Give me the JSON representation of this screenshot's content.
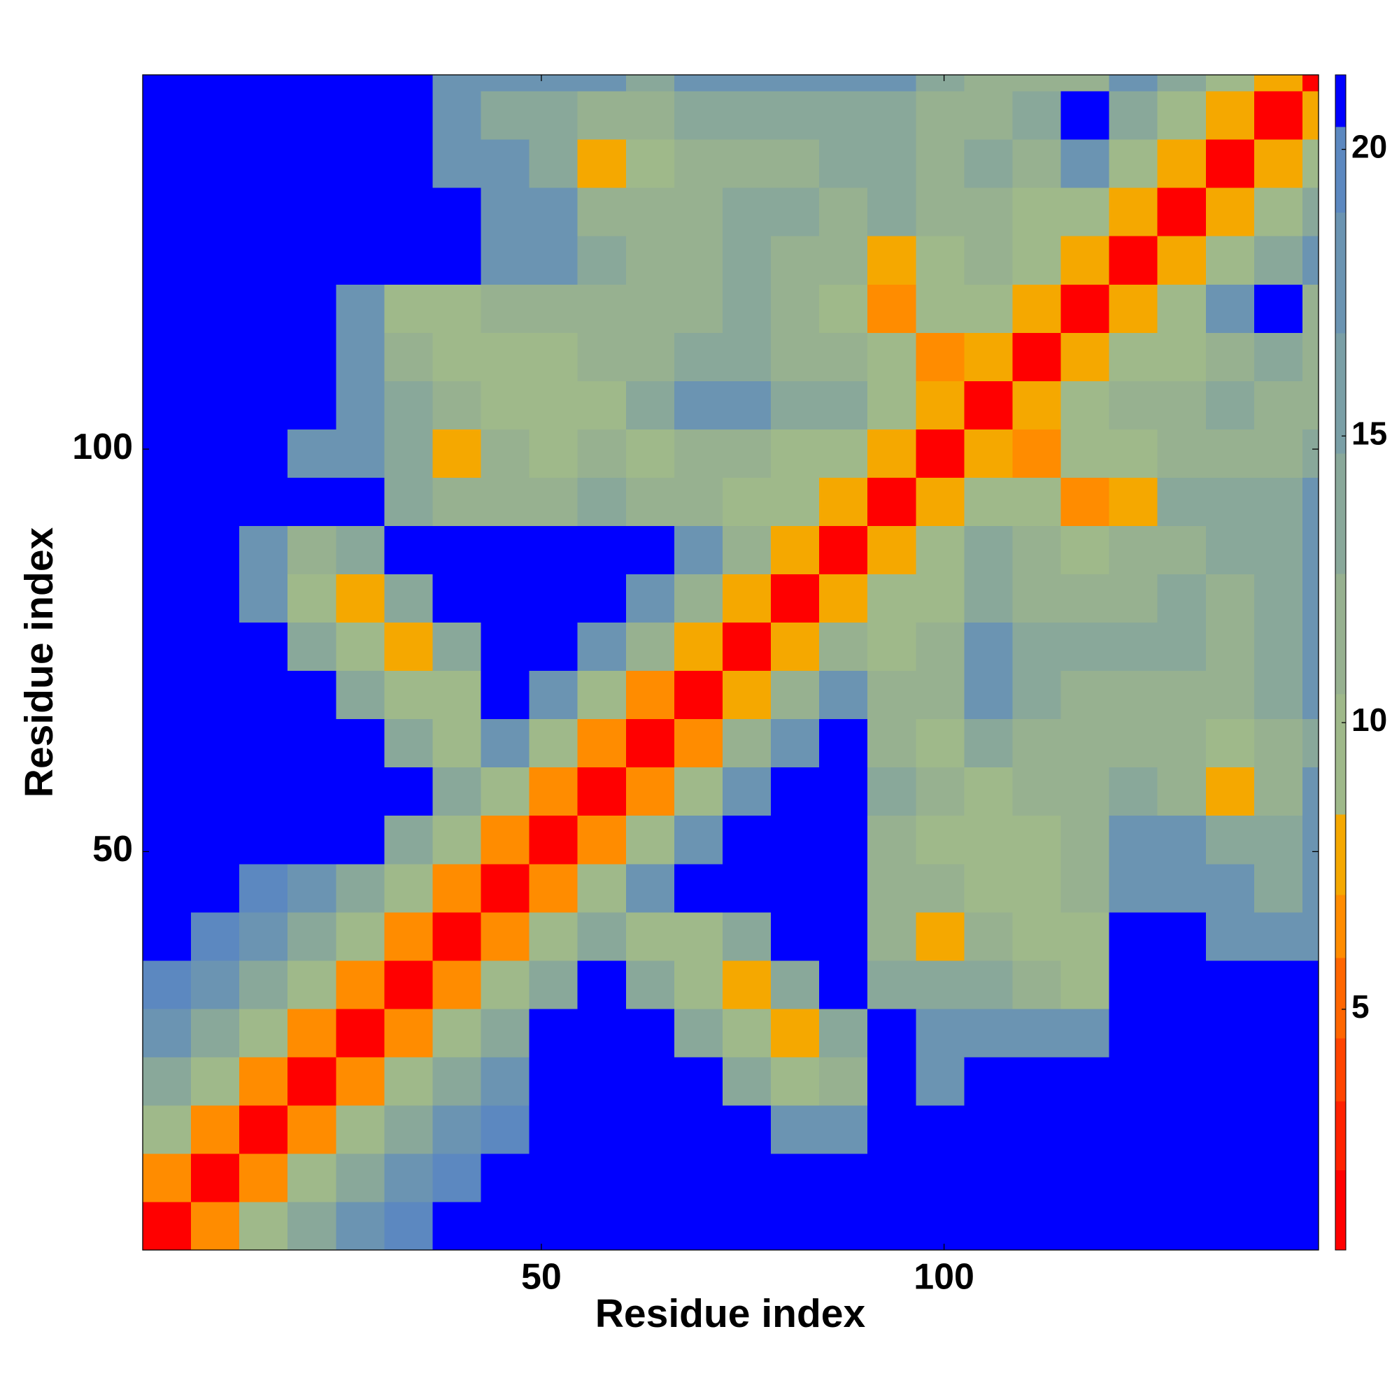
{
  "chart_data": {
    "type": "heatmap",
    "xlabel": "Residue index",
    "ylabel": "Residue index",
    "xlim": [
      0.5,
      146.5
    ],
    "ylim": [
      0.5,
      146.5
    ],
    "xticks": [
      50,
      100
    ],
    "yticks": [
      50,
      100
    ],
    "xbins": [
      0.5,
      6.5,
      12.5,
      18.5,
      24.5,
      30.5,
      36.5,
      42.5,
      48.5,
      54.5,
      60.5,
      66.5,
      72.5,
      78.5,
      84.5,
      90.5,
      96.5,
      102.5,
      108.5,
      114.5,
      120.5,
      126.5,
      132.5,
      138.5,
      144.5,
      146.5
    ],
    "ybins": [
      0.5,
      6.5,
      12.5,
      18.5,
      24.5,
      30.5,
      36.5,
      42.5,
      48.5,
      54.5,
      60.5,
      66.5,
      72.5,
      78.5,
      84.5,
      90.5,
      96.5,
      102.5,
      108.5,
      114.5,
      120.5,
      126.5,
      132.5,
      138.5,
      144.5,
      146.5
    ],
    "z": [
      [
        2,
        6.5,
        10,
        14,
        17,
        19.5,
        21,
        21,
        21,
        21,
        21,
        21,
        21,
        21,
        21,
        21,
        21,
        21,
        21,
        21,
        21,
        21,
        21,
        21,
        21
      ],
      [
        6.5,
        2,
        6.5,
        10,
        14,
        17,
        19.5,
        21,
        21,
        21,
        21,
        21,
        21,
        21,
        21,
        21,
        21,
        21,
        21,
        21,
        21,
        21,
        21,
        21,
        21
      ],
      [
        10,
        6.5,
        2,
        6.5,
        10,
        14,
        17,
        19.5,
        21,
        21,
        21,
        21,
        21,
        17,
        17,
        21,
        21,
        21,
        21,
        21,
        21,
        21,
        21,
        21,
        21
      ],
      [
        14,
        10,
        6.5,
        2,
        6.5,
        10,
        14,
        17,
        21,
        21,
        21,
        21,
        14,
        10,
        12,
        21,
        17,
        21,
        21,
        21,
        21,
        21,
        21,
        21,
        21
      ],
      [
        17,
        14,
        10,
        6.5,
        2,
        6.5,
        10,
        14,
        21,
        21,
        21,
        14,
        10,
        8,
        14,
        21,
        17,
        17,
        17,
        17,
        21,
        21,
        21,
        21,
        21
      ],
      [
        19.5,
        17,
        14,
        10,
        6.5,
        2,
        6.5,
        10,
        14,
        21,
        14,
        10,
        8,
        14,
        21,
        14,
        14,
        14,
        12,
        10,
        21,
        21,
        21,
        21,
        21
      ],
      [
        21,
        19.5,
        17,
        14,
        10,
        6.5,
        2,
        6.5,
        10,
        14,
        10,
        10,
        14,
        21,
        21,
        12,
        7,
        12,
        10,
        10,
        21,
        21,
        17,
        17,
        17
      ],
      [
        21,
        21,
        19.5,
        17,
        14,
        10,
        6.5,
        2,
        6.5,
        10,
        17,
        21,
        21,
        21,
        21,
        12,
        12,
        10,
        10,
        12,
        17,
        17,
        17,
        14,
        17
      ],
      [
        21,
        21,
        21,
        21,
        21,
        14,
        10,
        6.5,
        2,
        6.5,
        10,
        17,
        21,
        21,
        21,
        12,
        10,
        10,
        10,
        12,
        17,
        17,
        14,
        14,
        17
      ],
      [
        21,
        21,
        21,
        21,
        21,
        21,
        14,
        10,
        6.5,
        2,
        6.5,
        10,
        17,
        21,
        21,
        14,
        12,
        10,
        12,
        12,
        14,
        12,
        8,
        12,
        17
      ],
      [
        21,
        21,
        21,
        21,
        21,
        14,
        10,
        17,
        10,
        6.5,
        2,
        6.5,
        12,
        17,
        21,
        12,
        10,
        14,
        12,
        12,
        12,
        12,
        10,
        12,
        14
      ],
      [
        21,
        21,
        21,
        21,
        14,
        10,
        10,
        21,
        17,
        10,
        6.5,
        2,
        8,
        12,
        17,
        12,
        12,
        17,
        14,
        12,
        12,
        12,
        12,
        14,
        17
      ],
      [
        21,
        21,
        21,
        14,
        10,
        8,
        14,
        21,
        21,
        17,
        12,
        8,
        2,
        8,
        12,
        10,
        12,
        17,
        14,
        14,
        14,
        14,
        12,
        14,
        17
      ],
      [
        21,
        21,
        17,
        10,
        8,
        14,
        21,
        21,
        21,
        21,
        17,
        12,
        8,
        2,
        8,
        10,
        10,
        14,
        12,
        12,
        12,
        14,
        12,
        14,
        17
      ],
      [
        21,
        21,
        17,
        12,
        14,
        21,
        21,
        21,
        21,
        21,
        21,
        17,
        12,
        8,
        2,
        8,
        10,
        14,
        12,
        10,
        12,
        12,
        14,
        14,
        17
      ],
      [
        21,
        21,
        21,
        21,
        21,
        14,
        12,
        12,
        12,
        14,
        12,
        12,
        10,
        10,
        8,
        2,
        8,
        10,
        10,
        6.5,
        8,
        14,
        14,
        14,
        17
      ],
      [
        21,
        21,
        21,
        17,
        17,
        14,
        7,
        12,
        10,
        12,
        10,
        12,
        12,
        10,
        10,
        8,
        2,
        8,
        6.5,
        10,
        10,
        12,
        12,
        12,
        14
      ],
      [
        21,
        21,
        21,
        21,
        17,
        14,
        12,
        10,
        10,
        10,
        14,
        17,
        17,
        14,
        14,
        10,
        8,
        2,
        8,
        10,
        12,
        12,
        14,
        12,
        12
      ],
      [
        21,
        21,
        21,
        21,
        17,
        12,
        10,
        10,
        10,
        12,
        12,
        14,
        14,
        12,
        12,
        10,
        6.5,
        8,
        2,
        8,
        10,
        10,
        12,
        14,
        12
      ],
      [
        21,
        21,
        21,
        21,
        17,
        10,
        10,
        12,
        12,
        12,
        12,
        12,
        14,
        12,
        10,
        6.5,
        10,
        10,
        8,
        2,
        8,
        10,
        17,
        21,
        12
      ],
      [
        21,
        21,
        21,
        21,
        21,
        21,
        21,
        17,
        17,
        14,
        12,
        12,
        14,
        12,
        12,
        8,
        10,
        12,
        10,
        8,
        2,
        8,
        10,
        14,
        17
      ],
      [
        21,
        21,
        21,
        21,
        21,
        21,
        21,
        17,
        17,
        12,
        12,
        12,
        14,
        14,
        12,
        14,
        12,
        12,
        10,
        10,
        8,
        2,
        8,
        10,
        14
      ],
      [
        21,
        21,
        21,
        21,
        21,
        21,
        17,
        17,
        14,
        8,
        10,
        12,
        12,
        12,
        14,
        14,
        12,
        14,
        12,
        17,
        10,
        8,
        2,
        8,
        10
      ],
      [
        21,
        21,
        21,
        21,
        21,
        21,
        17,
        14,
        14,
        12,
        12,
        14,
        14,
        14,
        14,
        14,
        12,
        12,
        14,
        21,
        14,
        10,
        8,
        2,
        8
      ],
      [
        21,
        21,
        21,
        21,
        21,
        21,
        17,
        17,
        17,
        17,
        14,
        17,
        17,
        17,
        17,
        17,
        14,
        12,
        12,
        12,
        17,
        14,
        10,
        8,
        2
      ]
    ],
    "colorbar": {
      "clim": [
        0.8,
        21.3
      ],
      "levels": [
        2.2,
        3.4,
        4.5,
        5.9,
        7.0,
        8.4,
        10.5,
        12.6,
        14.7,
        16.8,
        18.9,
        20.4
      ],
      "colors": [
        "#ff0000",
        "#ff2200",
        "#ff4400",
        "#ff6600",
        "#ff8c00",
        "#f5a800",
        "#9fb98a",
        "#97b190",
        "#89a89a",
        "#7a9fa6",
        "#6b94b2",
        "#5c88c0",
        "#0000ff"
      ],
      "ticks": [
        5,
        10,
        15,
        20
      ]
    }
  }
}
